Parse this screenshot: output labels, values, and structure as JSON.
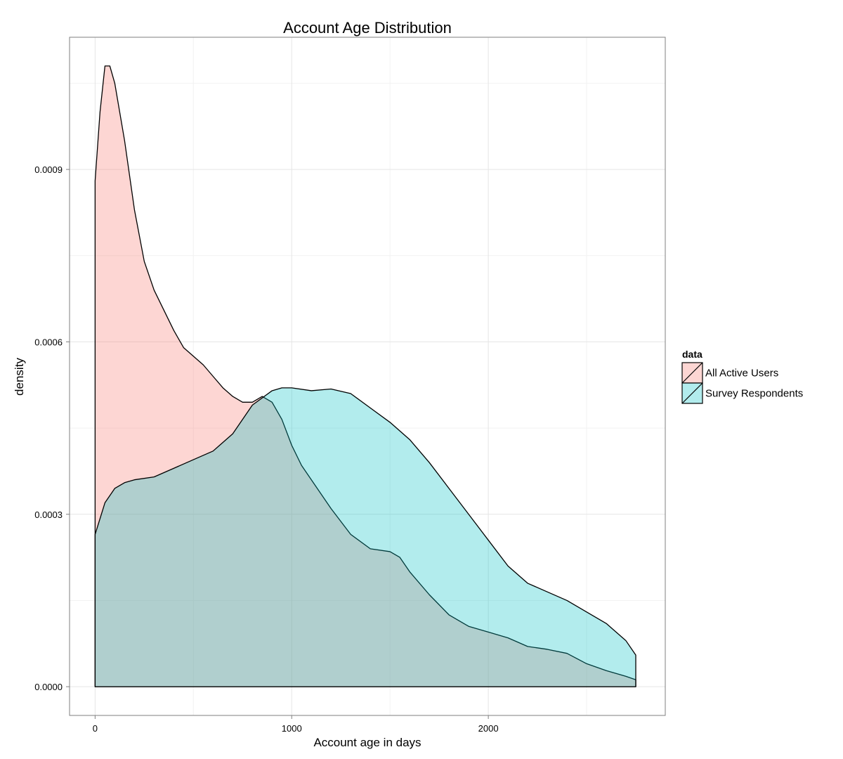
{
  "chart_data": {
    "type": "area",
    "subtype": "density",
    "title": "Account Age Distribution",
    "xlabel": "Account age in days",
    "ylabel": "density",
    "xlim": [
      -130,
      2900
    ],
    "ylim": [
      -5e-05,
      0.00113
    ],
    "x_ticks": [
      0,
      1000,
      2000
    ],
    "x_tick_labels": [
      "0",
      "1000",
      "2000"
    ],
    "y_ticks": [
      0,
      0.0003,
      0.0006,
      0.0009
    ],
    "y_tick_labels": [
      "0.0000",
      "0.0003",
      "0.0006",
      "0.0009"
    ],
    "grid": true,
    "legend": {
      "title": "data",
      "position": "right"
    },
    "series": [
      {
        "name": "All Active Users",
        "color": "#F8766D",
        "points": [
          [
            0,
            0.00088
          ],
          [
            25,
            0.001
          ],
          [
            50,
            0.00108
          ],
          [
            75,
            0.00108
          ],
          [
            100,
            0.00105
          ],
          [
            150,
            0.00095
          ],
          [
            200,
            0.00083
          ],
          [
            250,
            0.00074
          ],
          [
            300,
            0.00069
          ],
          [
            400,
            0.00062
          ],
          [
            450,
            0.00059
          ],
          [
            500,
            0.000575
          ],
          [
            550,
            0.00056
          ],
          [
            600,
            0.00054
          ],
          [
            650,
            0.00052
          ],
          [
            700,
            0.000505
          ],
          [
            750,
            0.000495
          ],
          [
            800,
            0.000495
          ],
          [
            850,
            0.000505
          ],
          [
            900,
            0.000495
          ],
          [
            950,
            0.000465
          ],
          [
            1000,
            0.00042
          ],
          [
            1050,
            0.000385
          ],
          [
            1100,
            0.00036
          ],
          [
            1200,
            0.00031
          ],
          [
            1300,
            0.000265
          ],
          [
            1400,
            0.00024
          ],
          [
            1500,
            0.000235
          ],
          [
            1550,
            0.000225
          ],
          [
            1600,
            0.0002
          ],
          [
            1700,
            0.00016
          ],
          [
            1800,
            0.000125
          ],
          [
            1900,
            0.000105
          ],
          [
            2000,
            9.5e-05
          ],
          [
            2100,
            8.5e-05
          ],
          [
            2200,
            7e-05
          ],
          [
            2300,
            6.5e-05
          ],
          [
            2400,
            5.8e-05
          ],
          [
            2500,
            4e-05
          ],
          [
            2600,
            2.8e-05
          ],
          [
            2700,
            1.8e-05
          ],
          [
            2750,
            1.2e-05
          ]
        ]
      },
      {
        "name": "Survey Respondents",
        "color": "#00BFC4",
        "points": [
          [
            0,
            0.000265
          ],
          [
            50,
            0.00032
          ],
          [
            100,
            0.000345
          ],
          [
            150,
            0.000355
          ],
          [
            200,
            0.00036
          ],
          [
            300,
            0.000365
          ],
          [
            400,
            0.00038
          ],
          [
            500,
            0.000395
          ],
          [
            600,
            0.00041
          ],
          [
            700,
            0.00044
          ],
          [
            800,
            0.00049
          ],
          [
            900,
            0.000515
          ],
          [
            950,
            0.00052
          ],
          [
            1000,
            0.00052
          ],
          [
            1100,
            0.000515
          ],
          [
            1200,
            0.000518
          ],
          [
            1300,
            0.00051
          ],
          [
            1400,
            0.000485
          ],
          [
            1500,
            0.00046
          ],
          [
            1600,
            0.00043
          ],
          [
            1700,
            0.00039
          ],
          [
            1800,
            0.000345
          ],
          [
            1900,
            0.0003
          ],
          [
            2000,
            0.000255
          ],
          [
            2100,
            0.00021
          ],
          [
            2200,
            0.00018
          ],
          [
            2300,
            0.000165
          ],
          [
            2400,
            0.00015
          ],
          [
            2500,
            0.00013
          ],
          [
            2600,
            0.00011
          ],
          [
            2700,
            8e-05
          ],
          [
            2750,
            5.5e-05
          ]
        ]
      }
    ]
  }
}
